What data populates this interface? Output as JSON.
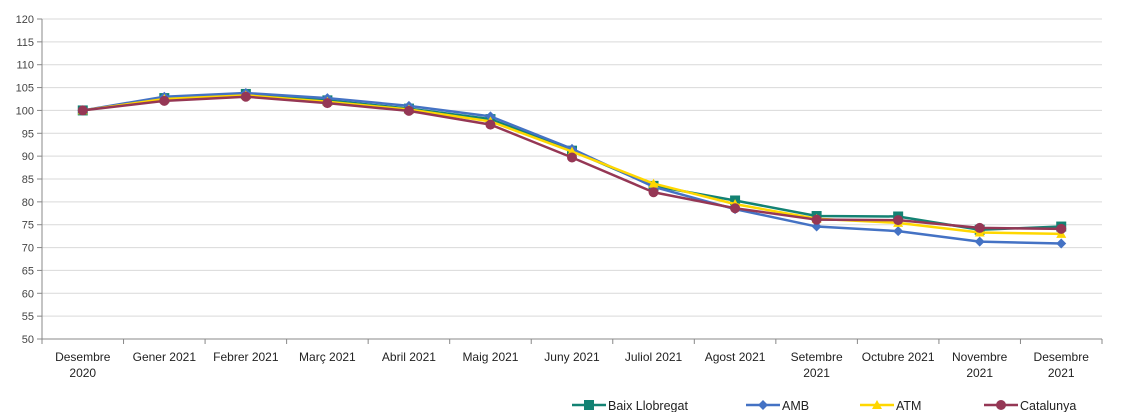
{
  "chart_data": {
    "type": "line",
    "categories": [
      [
        "Desembre",
        "2020"
      ],
      [
        "Gener 2021"
      ],
      [
        "Febrer 2021"
      ],
      [
        "Març 2021"
      ],
      [
        "Abril 2021"
      ],
      [
        "Maig 2021"
      ],
      [
        "Juny 2021"
      ],
      [
        "Juliol 2021"
      ],
      [
        "Agost 2021"
      ],
      [
        "Setembre",
        "2021"
      ],
      [
        "Octubre 2021"
      ],
      [
        "Novembre",
        "2021"
      ],
      [
        "Desembre",
        "2021"
      ]
    ],
    "ylim": [
      50,
      120
    ],
    "yticks": [
      50,
      55,
      60,
      65,
      70,
      75,
      80,
      85,
      90,
      95,
      100,
      105,
      110,
      115,
      120
    ],
    "grid": true,
    "legend_position": "bottom-right",
    "series": [
      {
        "name": "Baix Llobregat",
        "color": "#138273",
        "marker": "square",
        "values": [
          100,
          102.7,
          103.6,
          102.2,
          100.4,
          98.1,
          91.2,
          83.5,
          80.3,
          76.9,
          76.8,
          73.9,
          74.6
        ]
      },
      {
        "name": "AMB",
        "color": "#4472C4",
        "marker": "diamond",
        "values": [
          100,
          103.0,
          103.8,
          102.7,
          101.0,
          98.7,
          91.6,
          83.3,
          78.4,
          74.6,
          73.6,
          71.3,
          70.9
        ]
      },
      {
        "name": "ATM",
        "color": "#FFD700",
        "marker": "triangle",
        "values": [
          100,
          102.5,
          103.3,
          101.9,
          100.2,
          97.6,
          91.0,
          84.0,
          79.5,
          76.3,
          75.4,
          73.3,
          73.0
        ]
      },
      {
        "name": "Catalunya",
        "color": "#953755",
        "marker": "circle",
        "values": [
          100,
          102.1,
          103.0,
          101.6,
          99.9,
          96.9,
          89.7,
          82.1,
          78.6,
          76.1,
          76.0,
          74.3,
          74.1
        ]
      }
    ]
  }
}
